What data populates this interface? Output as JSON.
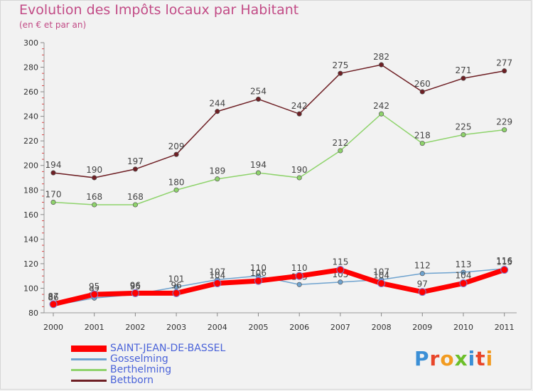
{
  "title": "Evolution des Impôts locaux par Habitant",
  "subtitle": "(en € et par an)",
  "logo": {
    "text": "Proxiti",
    "letter_colors": [
      "#3b8fd6",
      "#e8462a",
      "#f29b20",
      "#6cbf2a",
      "#3b8fd6",
      "#e8462a",
      "#f29b20"
    ]
  },
  "chart_data": {
    "type": "line",
    "title": "Evolution des Impôts locaux par Habitant",
    "subtitle": "(en € et par an)",
    "xlabel": "",
    "ylabel": "",
    "x": [
      2000,
      2001,
      2002,
      2003,
      2004,
      2005,
      2006,
      2007,
      2008,
      2009,
      2010,
      2011
    ],
    "x_tick_labels": [
      "2000",
      "2001",
      "2002",
      "2003",
      "2004",
      "2005",
      "2006",
      "2007",
      "2008",
      "2009",
      "2010",
      "2011"
    ],
    "ylim": [
      80,
      300
    ],
    "y_ticks": [
      80,
      100,
      120,
      140,
      160,
      180,
      200,
      220,
      240,
      260,
      280,
      300
    ],
    "y_tick_labels": [
      "80",
      "100",
      "120",
      "140",
      "160",
      "180",
      "200",
      "220",
      "240",
      "260",
      "280",
      "300"
    ],
    "grid": false,
    "legend_position": "bottom-left",
    "series": [
      {
        "name": "Bettborn",
        "color": "#6e1f24",
        "values": [
          194,
          190,
          197,
          209,
          244,
          254,
          242,
          275,
          282,
          260,
          271,
          277
        ],
        "labels": [
          "194",
          "190",
          "197",
          "209",
          "244",
          "254",
          "242",
          "275",
          "282",
          "260",
          "271",
          "277"
        ]
      },
      {
        "name": "Berthelming",
        "color": "#8ed36b",
        "values": [
          170,
          168,
          168,
          180,
          189,
          194,
          190,
          212,
          242,
          218,
          225,
          229
        ],
        "labels": [
          "170",
          "168",
          "168",
          "180",
          "189",
          "194",
          "190",
          "212",
          "242",
          "218",
          "225",
          "229"
        ]
      },
      {
        "name": "Gosselming",
        "color": "#6fa3cf",
        "values": [
          86,
          92,
          95,
          101,
          107,
          110,
          103,
          105,
          107,
          112,
          113,
          116
        ],
        "labels": [
          "86",
          "92",
          "95",
          "101",
          "107",
          "110",
          "103",
          "105",
          "107",
          "112",
          "113",
          "116"
        ]
      },
      {
        "name": "SAINT-JEAN-DE-BASSEL",
        "color": "#ff0000",
        "values": [
          87,
          95,
          96,
          96,
          104,
          106,
          110,
          115,
          104,
          97,
          104,
          115
        ],
        "labels": [
          "87",
          "95",
          "96",
          "96",
          "104",
          "106",
          "110",
          "115",
          "104",
          "97",
          "104",
          "115"
        ]
      }
    ],
    "legend_order": [
      "SAINT-JEAN-DE-BASSEL",
      "Gosselming",
      "Berthelming",
      "Bettborn"
    ]
  }
}
